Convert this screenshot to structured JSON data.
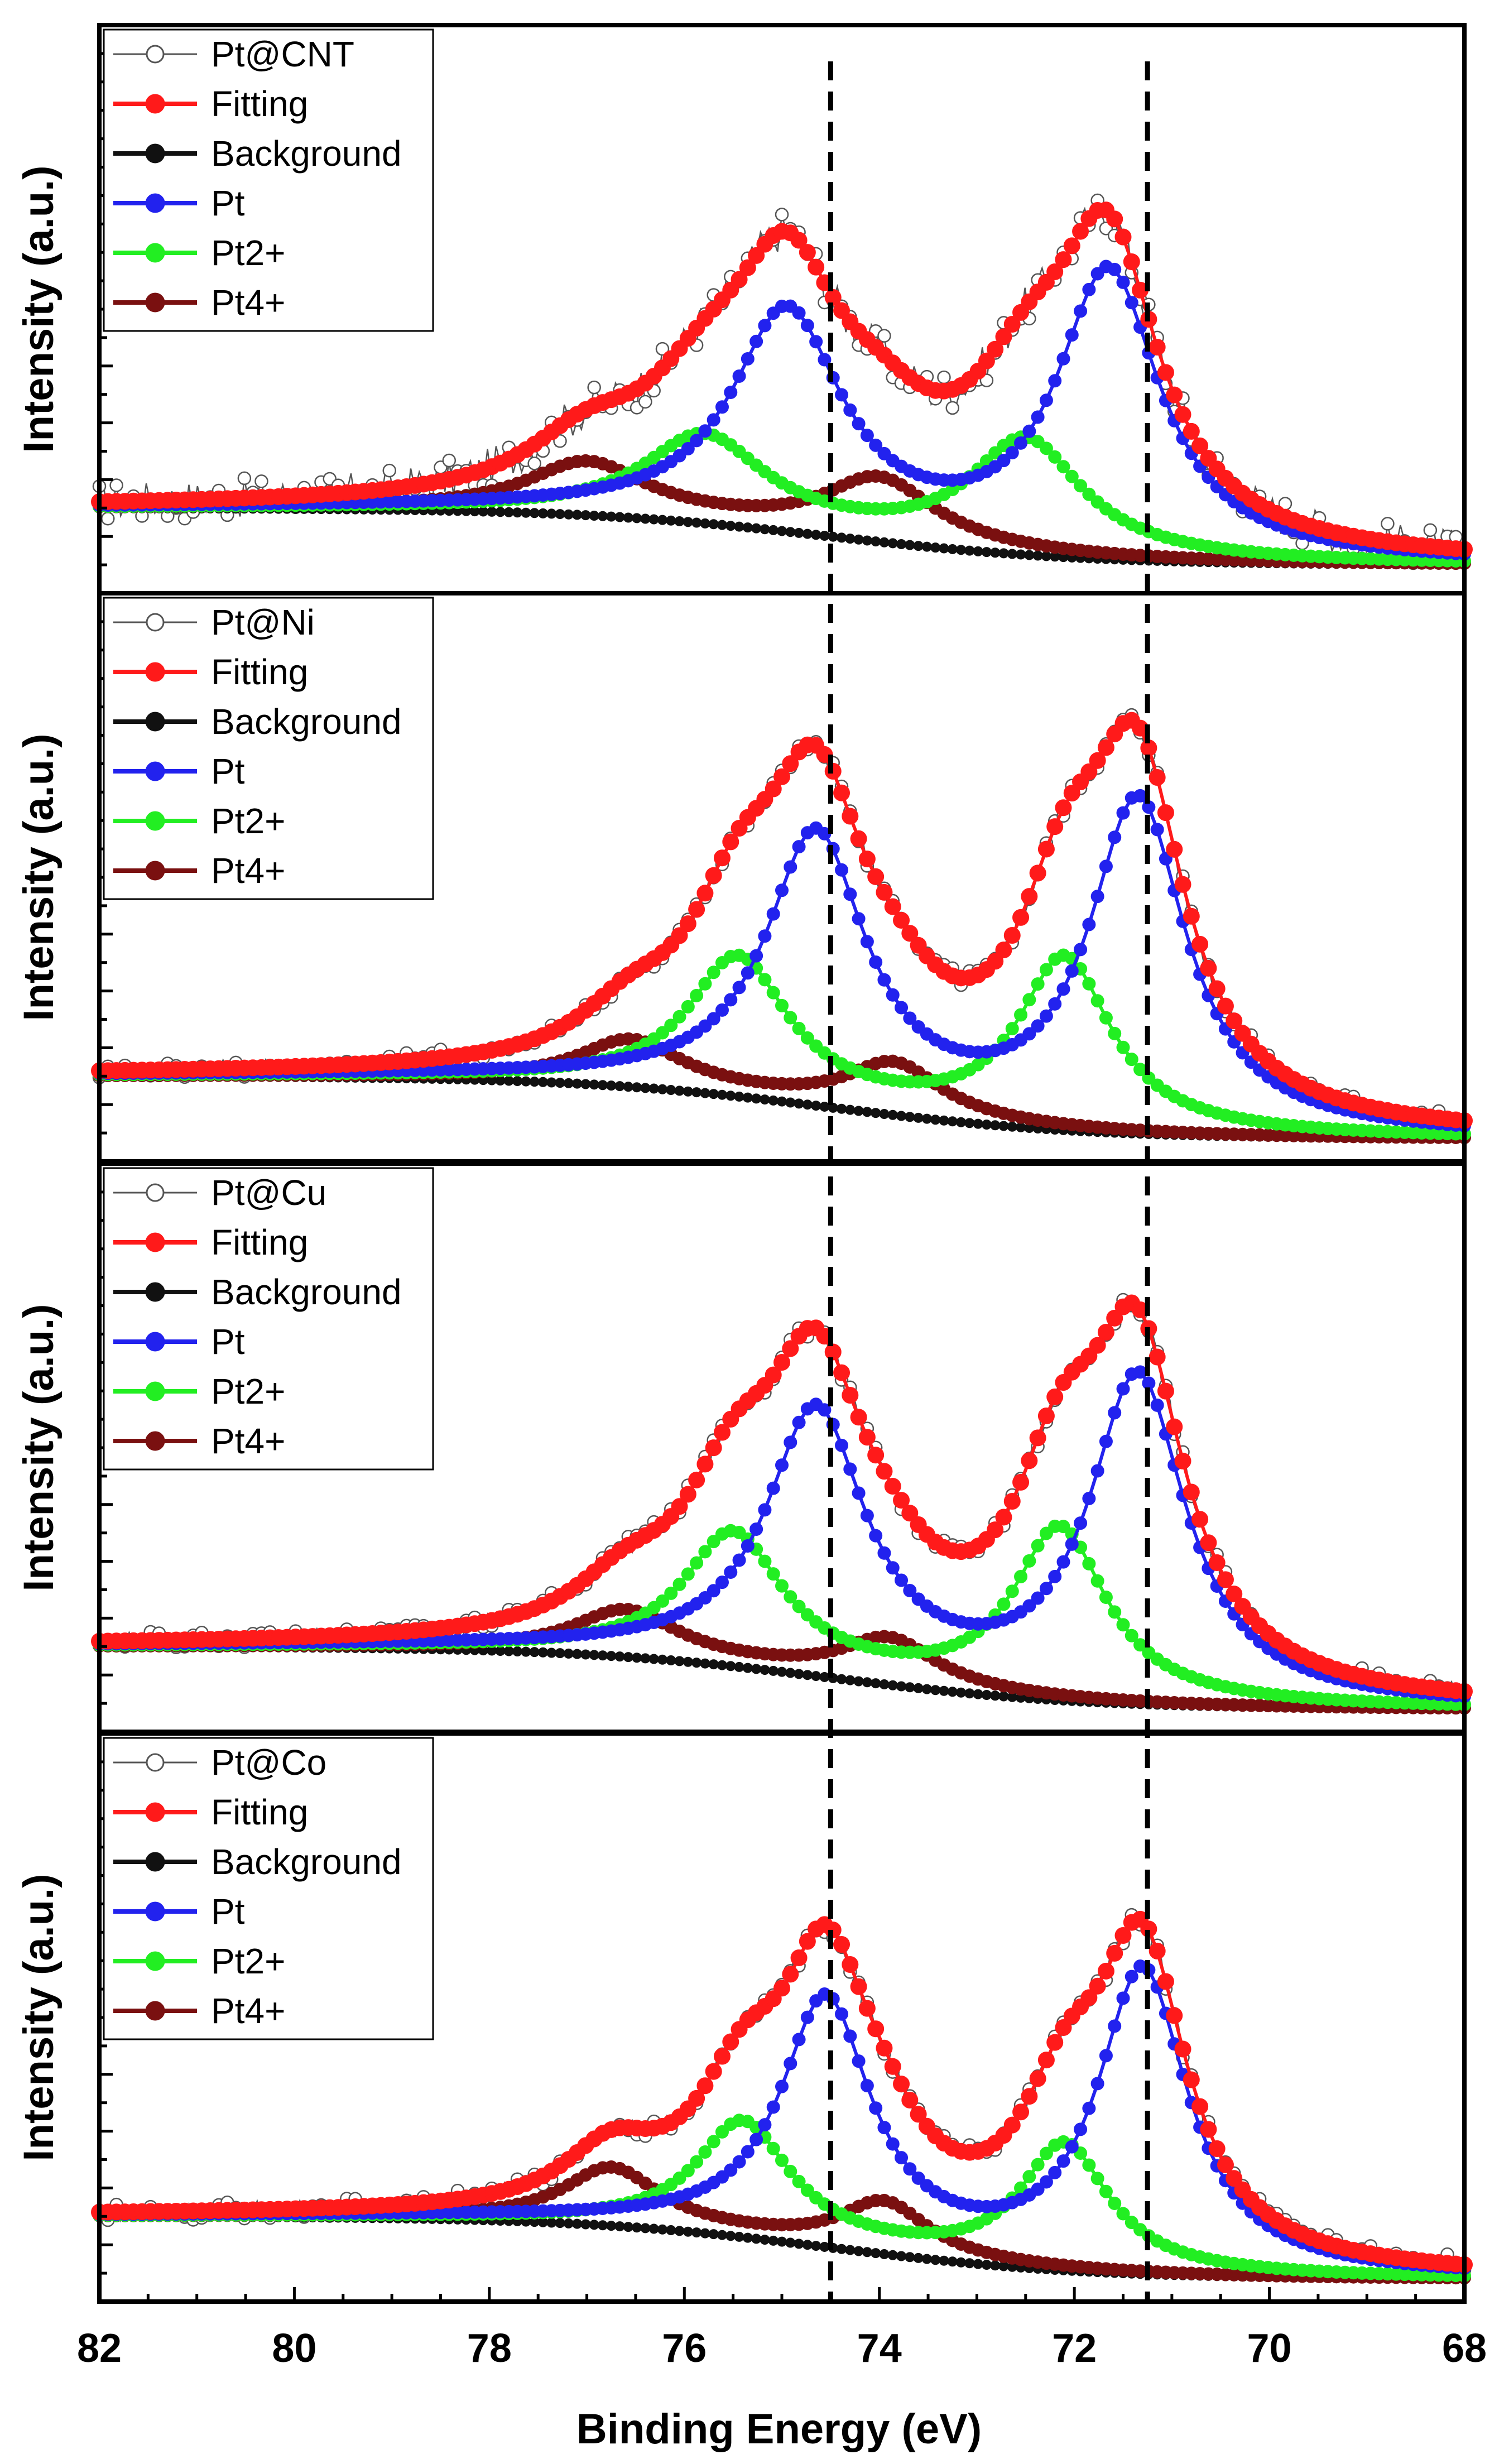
{
  "figure": {
    "xlabel": "Binding Energy (eV)",
    "ylabel": "Intensity (a.u.)"
  },
  "chart_data": {
    "type": "line",
    "xlim": [
      82,
      68
    ],
    "x_ticks": [
      "82",
      "80",
      "78",
      "76",
      "74",
      "72",
      "70",
      "68"
    ],
    "x_tick_values": [
      82,
      80,
      78,
      76,
      74,
      72,
      70,
      68
    ],
    "reference_lines": [
      74.5,
      71.25
    ],
    "colors": {
      "data": "#555555",
      "fitting": "#ff1a1a",
      "background": "#111111",
      "pt": "#2222ee",
      "pt2": "#22ee22",
      "pt4": "#7a1010"
    },
    "panels": [
      {
        "sample": "Pt@CNT",
        "legend": [
          "Pt@CNT",
          "Fitting",
          "Background",
          "Pt",
          "Pt2+",
          "Pt4+"
        ],
        "ylim": [
          0,
          100
        ],
        "background": {
          "left": 15,
          "right": 5
        },
        "components": {
          "pt": [
            {
              "center": 74.95,
              "amp": 38,
              "width": 0.68
            },
            {
              "center": 71.65,
              "amp": 50,
              "width": 0.64
            }
          ],
          "pt2": [
            {
              "center": 75.8,
              "amp": 15,
              "width": 0.75
            },
            {
              "center": 72.5,
              "amp": 20,
              "width": 0.7
            }
          ],
          "pt4": [
            {
              "center": 77.0,
              "amp": 9,
              "width": 0.75
            },
            {
              "center": 74.0,
              "amp": 11,
              "width": 0.7
            }
          ]
        }
      },
      {
        "sample": "Pt@Ni",
        "legend": [
          "Pt@Ni",
          "Fitting",
          "Background",
          "Pt",
          "Pt2+",
          "Pt4+"
        ],
        "ylim": [
          0,
          100
        ],
        "background": {
          "left": 15,
          "right": 4
        },
        "components": {
          "pt": [
            {
              "center": 74.65,
              "amp": 47,
              "width": 0.62
            },
            {
              "center": 71.35,
              "amp": 58,
              "width": 0.6
            }
          ],
          "pt2": [
            {
              "center": 75.45,
              "amp": 24,
              "width": 0.62
            },
            {
              "center": 72.1,
              "amp": 30,
              "width": 0.58
            }
          ],
          "pt4": [
            {
              "center": 76.55,
              "amp": 8,
              "width": 0.65
            },
            {
              "center": 73.85,
              "amp": 9,
              "width": 0.6
            }
          ]
        }
      },
      {
        "sample": "Pt@Cu",
        "legend": [
          "Pt@Cu",
          "Fitting",
          "Background",
          "Pt",
          "Pt2+",
          "Pt4+"
        ],
        "ylim": [
          0,
          100
        ],
        "background": {
          "left": 15,
          "right": 4
        },
        "components": {
          "pt": [
            {
              "center": 74.65,
              "amp": 46,
              "width": 0.62
            },
            {
              "center": 71.35,
              "amp": 57,
              "width": 0.6
            }
          ],
          "pt2": [
            {
              "center": 75.5,
              "amp": 23,
              "width": 0.62
            },
            {
              "center": 72.15,
              "amp": 30,
              "width": 0.58
            }
          ],
          "pt4": [
            {
              "center": 76.6,
              "amp": 8,
              "width": 0.65
            },
            {
              "center": 73.9,
              "amp": 8,
              "width": 0.6
            }
          ]
        }
      },
      {
        "sample": "Pt@Co",
        "legend": [
          "Pt@Co",
          "Fitting",
          "Background",
          "Pt",
          "Pt2+",
          "Pt4+"
        ],
        "ylim": [
          0,
          100
        ],
        "background": {
          "left": 15,
          "right": 4
        },
        "components": {
          "pt": [
            {
              "center": 74.55,
              "amp": 43,
              "width": 0.56
            },
            {
              "center": 71.3,
              "amp": 53,
              "width": 0.56
            }
          ],
          "pt2": [
            {
              "center": 75.4,
              "amp": 20,
              "width": 0.58
            },
            {
              "center": 72.1,
              "amp": 22,
              "width": 0.55
            }
          ],
          "pt4": [
            {
              "center": 76.75,
              "amp": 10,
              "width": 0.6
            },
            {
              "center": 73.95,
              "amp": 9,
              "width": 0.55
            }
          ]
        }
      }
    ]
  }
}
